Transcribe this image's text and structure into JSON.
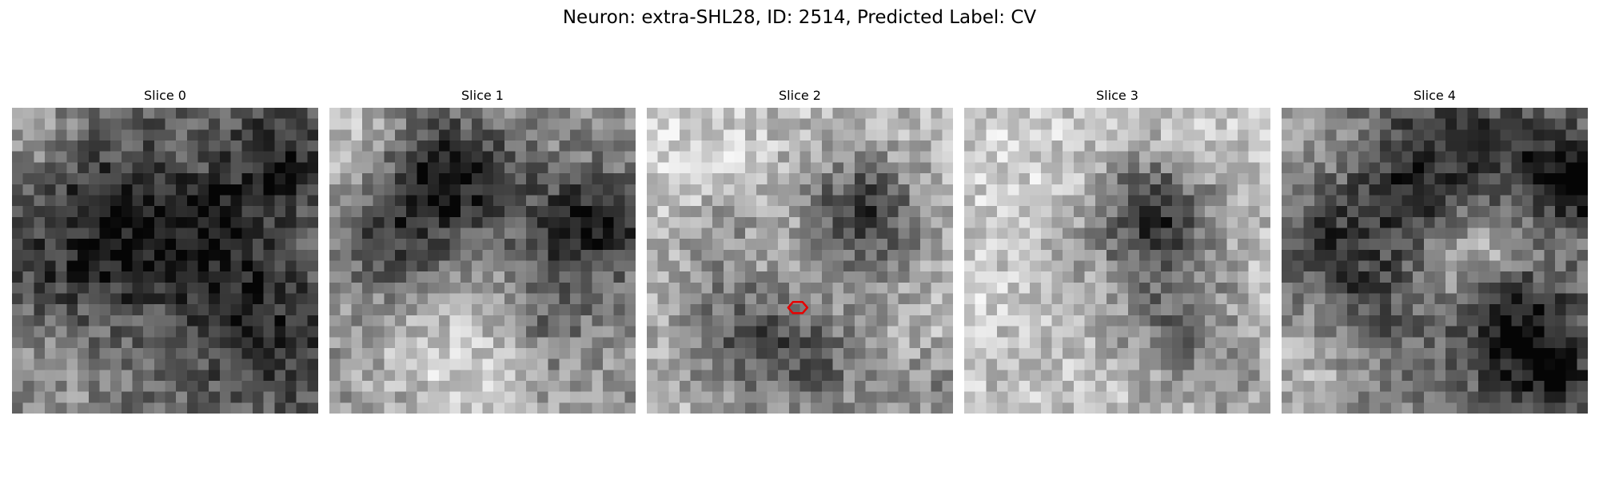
{
  "figure": {
    "title": "Neuron: extra-SHL28, ID: 2514, Predicted Label: CV"
  },
  "colors": {
    "colormap": "gray",
    "marker": "#e60000",
    "background": "#ffffff"
  },
  "panels": [
    {
      "title": "Slice 0",
      "image": {
        "description": "noisy grayscale field, mostly mid-to-dark gray",
        "mean_brightness": 0.44,
        "dark_blobs": [],
        "light_blobs": []
      }
    },
    {
      "title": "Slice 1",
      "image": {
        "description": "grayscale field with dark blob left-center and a dark patch top-center",
        "mean_brightness": 0.56,
        "dark_blobs": [],
        "light_blobs": []
      }
    },
    {
      "title": "Slice 2",
      "image": {
        "description": "light grayscale field with a dark cell body upper-right of center and a dark band lower region",
        "mean_brightness": 0.74,
        "dark_blobs": [],
        "light_blobs": []
      },
      "marker": {
        "shape": "hexagon-outline",
        "row": 18.3,
        "col": 13.8
      }
    },
    {
      "title": "Slice 3",
      "image": {
        "description": "very light grayscale field with a dark cell body upper-right and a fainter one lower-right",
        "mean_brightness": 0.75,
        "dark_blobs": [],
        "light_blobs": []
      }
    },
    {
      "title": "Slice 4",
      "image": {
        "description": "mid-gray field with dark blotches top-center, right edge and lower-right",
        "mean_brightness": 0.5,
        "dark_blobs": [],
        "light_blobs": []
      }
    }
  ]
}
